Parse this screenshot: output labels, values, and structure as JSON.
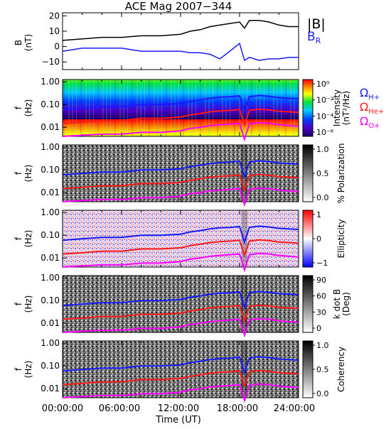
{
  "title": "ACE Mag 2007−344",
  "time_axis": {
    "label": "Time (UT)",
    "ticks": [
      "00:00:00",
      "06:00:00",
      "12:00:00",
      "18:00:00",
      "24:00:00"
    ],
    "range_hours": [
      0,
      24
    ]
  },
  "colors": {
    "btotal": "#000000",
    "br": "#1a1aff",
    "h_plus": "#1a1aff",
    "he_plus": "#ff1a1a",
    "o_plus": "#ff00ff"
  },
  "chart_data": [
    {
      "type": "line",
      "panel": "magnetic-field",
      "ylabel": "B",
      "yunit": "(nT)",
      "ylim": [
        -15,
        22
      ],
      "yticks": [
        "20",
        "10",
        "0",
        "−10"
      ],
      "legend": [
        {
          "name": "|B|",
          "color": "#000000"
        },
        {
          "name": "B",
          "sub": "R",
          "color": "#1a1aff"
        }
      ],
      "x": [
        0,
        2,
        4,
        6,
        8,
        10,
        12,
        13,
        14,
        15,
        16,
        17,
        18,
        18.5,
        19,
        20,
        21,
        22,
        23,
        24
      ],
      "series": [
        {
          "name": "|B|",
          "values": [
            4,
            5,
            6,
            6,
            7,
            7,
            8,
            10,
            11,
            13,
            14,
            15,
            16,
            12,
            17,
            17,
            16,
            14,
            13,
            13
          ]
        },
        {
          "name": "B",
          "values": [
            -3,
            -1,
            -1,
            -1,
            -3,
            -3,
            -3,
            -4,
            -4,
            -5,
            -8,
            -3,
            2,
            -9,
            -7,
            -9,
            -8,
            -8,
            -7,
            -7
          ]
        }
      ]
    },
    {
      "type": "heatmap",
      "panel": "intensity",
      "ylabel": "f",
      "yunit": "(Hz)",
      "yticks": [
        "1.00",
        "0.10",
        "0.01"
      ],
      "colorbar": {
        "label": "Intensity",
        "unit": "(nT²/Hz)",
        "ticks": [
          "10⁰",
          "10⁻²",
          "10⁻⁴",
          "10⁻⁶"
        ],
        "range_log": [
          -6,
          1
        ]
      },
      "legend": [
        {
          "name": "Ω",
          "sub": "H+",
          "color": "#1a1aff"
        },
        {
          "name": "Ω",
          "sub": "He+",
          "color": "#ff1a1a"
        },
        {
          "name": "Ω",
          "sub": "O+",
          "color": "#ff00ff"
        }
      ]
    },
    {
      "type": "heatmap",
      "panel": "polarization",
      "ylabel": "f",
      "yunit": "(Hz)",
      "yticks": [
        "1.00",
        "0.10",
        "0.01"
      ],
      "colorbar": {
        "label": "% Polarization",
        "ticks": [
          "1.0",
          "0.5",
          "0.0"
        ],
        "range": [
          0,
          1
        ]
      }
    },
    {
      "type": "heatmap",
      "panel": "ellipticity",
      "ylabel": "f",
      "yunit": "(Hz)",
      "yticks": [
        "1.00",
        "0.10",
        "0.01"
      ],
      "colorbar": {
        "label": "Ellipticity",
        "ticks": [
          "1",
          "0",
          "−1"
        ],
        "range": [
          -1,
          1
        ]
      }
    },
    {
      "type": "heatmap",
      "panel": "k-dot-b",
      "ylabel": "f",
      "yunit": "(Hz)",
      "yticks": [
        "1.00",
        "0.10",
        "0.01"
      ],
      "colorbar": {
        "label": "k dot B",
        "unit": "(Deg)",
        "ticks": [
          "90",
          "60",
          "30",
          "0"
        ],
        "range": [
          0,
          90
        ]
      }
    },
    {
      "type": "heatmap",
      "panel": "coherency",
      "ylabel": "f",
      "yunit": "(Hz)",
      "yticks": [
        "1.00",
        "0.10",
        "0.01"
      ],
      "colorbar": {
        "label": "Coherency",
        "ticks": [
          "1.0",
          "0.5",
          "0.0"
        ],
        "range": [
          0,
          1
        ]
      }
    }
  ],
  "gyrofrequency_curves": {
    "x": [
      0,
      2,
      4,
      6,
      8,
      10,
      12,
      13,
      14,
      15,
      16,
      17,
      18,
      18.5,
      19,
      20,
      21,
      22,
      23,
      24
    ],
    "h_plus_hz": [
      0.06,
      0.07,
      0.08,
      0.08,
      0.1,
      0.1,
      0.11,
      0.14,
      0.16,
      0.19,
      0.21,
      0.22,
      0.24,
      0.05,
      0.22,
      0.25,
      0.23,
      0.2,
      0.19,
      0.18
    ],
    "he_plus_hz": [
      0.015,
      0.017,
      0.02,
      0.02,
      0.025,
      0.025,
      0.028,
      0.035,
      0.04,
      0.048,
      0.052,
      0.055,
      0.06,
      0.013,
      0.055,
      0.062,
      0.058,
      0.05,
      0.048,
      0.045
    ],
    "o_plus_hz": [
      0.004,
      0.0045,
      0.005,
      0.005,
      0.006,
      0.006,
      0.007,
      0.009,
      0.01,
      0.012,
      0.013,
      0.014,
      0.015,
      0.003,
      0.014,
      0.016,
      0.015,
      0.013,
      0.012,
      0.011
    ]
  }
}
